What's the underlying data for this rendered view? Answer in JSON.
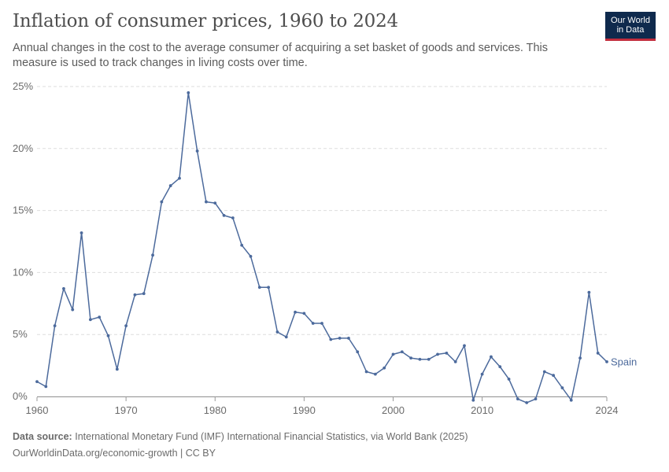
{
  "header": {
    "title": "Inflation of consumer prices, 1960 to 2024",
    "subtitle": "Annual changes in the cost to the average consumer of acquiring a set basket of goods and services. This measure is used to track changes in living costs over time."
  },
  "logo": {
    "line1": "Our World",
    "line2": "in Data"
  },
  "footer": {
    "source_label": "Data source:",
    "source_text": "International Monetary Fund (IMF) International Financial Statistics, via World Bank (2025)",
    "url_text": "OurWorldinData.org/economic-growth | CC BY"
  },
  "colors": {
    "series": "#4c6a9c",
    "grid": "#dddddd",
    "axis": "#999999"
  },
  "chart_data": {
    "type": "line",
    "xlim": [
      1960,
      2024
    ],
    "ylim": [
      0,
      25
    ],
    "yticks": [
      0,
      5,
      10,
      15,
      20,
      25
    ],
    "ytick_labels": [
      "0%",
      "5%",
      "10%",
      "15%",
      "20%",
      "25%"
    ],
    "xticks": [
      1960,
      1970,
      1980,
      1990,
      2000,
      2010,
      2024
    ],
    "xtick_labels": [
      "1960",
      "1970",
      "1980",
      "1990",
      "2000",
      "2010",
      "2024"
    ],
    "grid": "horizontal-dashed",
    "series": [
      {
        "name": "Spain",
        "x": [
          1960,
          1961,
          1962,
          1963,
          1964,
          1965,
          1966,
          1967,
          1968,
          1969,
          1970,
          1971,
          1972,
          1973,
          1974,
          1975,
          1976,
          1977,
          1978,
          1979,
          1980,
          1981,
          1982,
          1983,
          1984,
          1985,
          1986,
          1987,
          1988,
          1989,
          1990,
          1991,
          1992,
          1993,
          1994,
          1995,
          1996,
          1997,
          1998,
          1999,
          2000,
          2001,
          2002,
          2003,
          2004,
          2005,
          2006,
          2007,
          2008,
          2009,
          2010,
          2011,
          2012,
          2013,
          2014,
          2015,
          2016,
          2017,
          2018,
          2019,
          2020,
          2021,
          2022,
          2023,
          2024
        ],
        "values": [
          1.2,
          0.8,
          5.7,
          8.7,
          7.0,
          13.2,
          6.2,
          6.4,
          4.9,
          2.2,
          5.7,
          8.2,
          8.3,
          11.4,
          15.7,
          17.0,
          17.6,
          24.5,
          19.8,
          15.7,
          15.6,
          14.6,
          14.4,
          12.2,
          11.3,
          8.8,
          8.8,
          5.2,
          4.8,
          6.8,
          6.7,
          5.9,
          5.9,
          4.6,
          4.7,
          4.7,
          3.6,
          2.0,
          1.8,
          2.3,
          3.4,
          3.6,
          3.1,
          3.0,
          3.0,
          3.4,
          3.5,
          2.8,
          4.1,
          -0.3,
          1.8,
          3.2,
          2.4,
          1.4,
          -0.2,
          -0.5,
          -0.2,
          2.0,
          1.7,
          0.7,
          -0.3,
          3.1,
          8.4,
          3.5,
          2.8
        ]
      }
    ]
  }
}
